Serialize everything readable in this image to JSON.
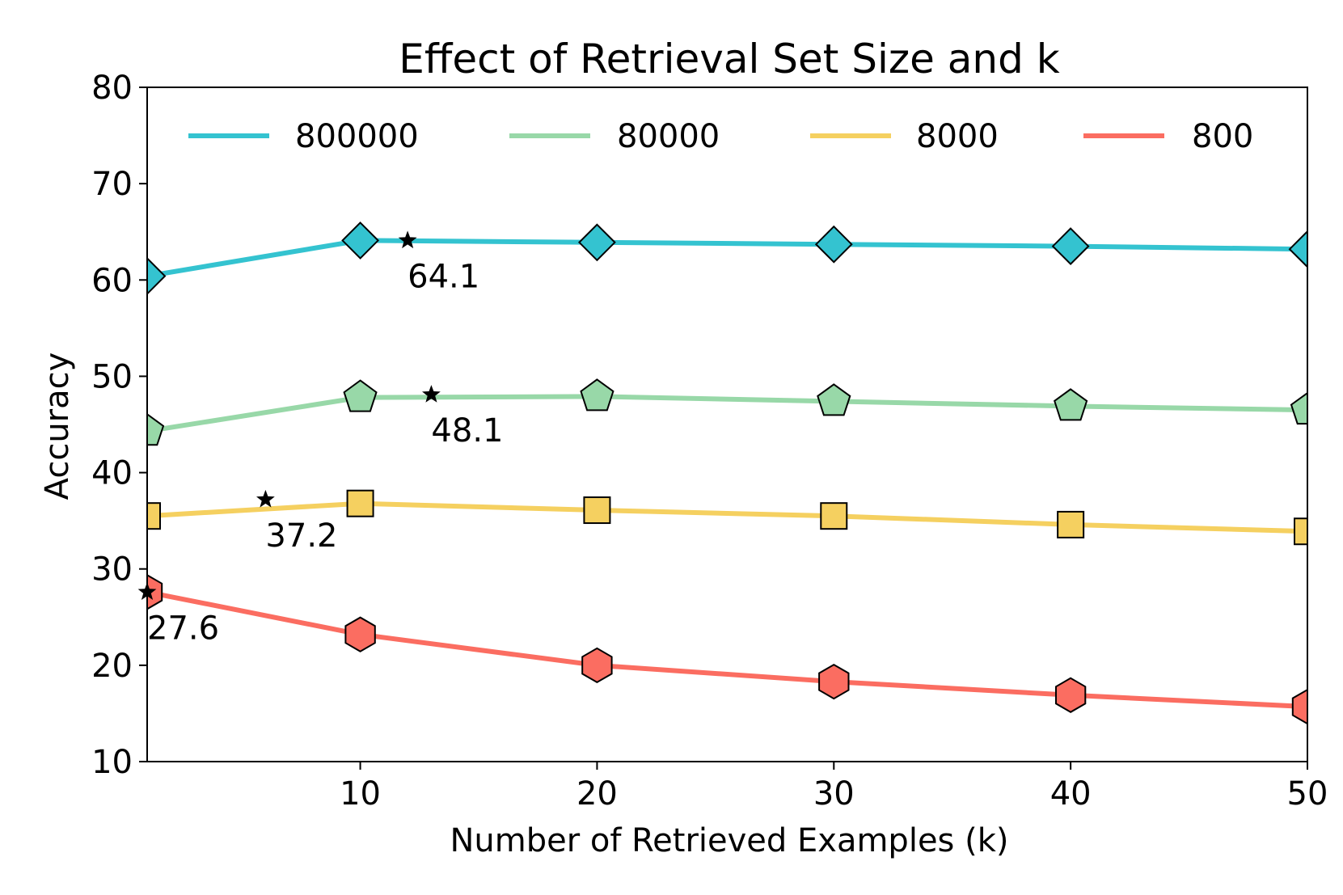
{
  "chart_data": {
    "type": "line",
    "title": "Effect of Retrieval Set Size and k",
    "xlabel": "Number of Retrieved Examples (k)",
    "ylabel": "Accuracy",
    "xlim": [
      1,
      50
    ],
    "ylim": [
      10,
      80
    ],
    "xticks": [
      "10",
      "20",
      "30",
      "40",
      "50"
    ],
    "yticks": [
      "10",
      "20",
      "30",
      "40",
      "50",
      "60",
      "70",
      "80"
    ],
    "grid": false,
    "legend_position": "top",
    "x": [
      1,
      10,
      20,
      30,
      40,
      50
    ],
    "series": [
      {
        "name": "800000",
        "color": "#34c3d0",
        "marker": "diamond",
        "values": [
          60.4,
          64.1,
          63.9,
          63.7,
          63.5,
          63.2
        ]
      },
      {
        "name": "80000",
        "color": "#98d8a8",
        "marker": "pentagon",
        "values": [
          44.3,
          47.8,
          47.9,
          47.4,
          46.9,
          46.5
        ]
      },
      {
        "name": "8000",
        "color": "#f5d060",
        "marker": "square",
        "values": [
          35.5,
          36.8,
          36.1,
          35.5,
          34.6,
          33.9
        ]
      },
      {
        "name": "800",
        "color": "#fb6d61",
        "marker": "hexagon",
        "values": [
          27.6,
          23.2,
          20.0,
          18.3,
          16.9,
          15.7
        ]
      }
    ],
    "annotations": [
      {
        "x": 12,
        "y": 64.1,
        "text": "64.1",
        "marker": "star"
      },
      {
        "x": 13,
        "y": 48.1,
        "text": "48.1",
        "marker": "star"
      },
      {
        "x": 6,
        "y": 37.2,
        "text": "37.2",
        "marker": "star"
      },
      {
        "x": 1,
        "y": 27.6,
        "text": "27.6",
        "marker": "star"
      }
    ]
  }
}
